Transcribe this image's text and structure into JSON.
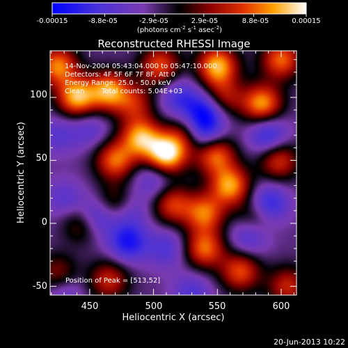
{
  "chart_data": {
    "type": "heatmap",
    "title": "Reconstructed RHESSI Image",
    "xlabel": "Heliocentric X (arcsec)",
    "ylabel": "Heliocentric Y (arcsec)",
    "xlim": [
      419,
      612
    ],
    "ylim": [
      -57,
      137
    ],
    "x_ticks": [
      450,
      500,
      550,
      600
    ],
    "y_ticks": [
      -50,
      0,
      50,
      100
    ],
    "colorbar": {
      "ticks": [
        "-0.00015",
        "-8.8e-05",
        "-2.9e-05",
        "2.9e-05",
        "8.8e-05",
        "0.00015"
      ],
      "tick_values": [
        -0.00015,
        -8.8e-05,
        -2.9e-05,
        2.9e-05,
        8.8e-05,
        0.00015
      ],
      "range": [
        -0.00015,
        0.00015
      ],
      "label": "(photons cm",
      "label_sup1": "-2",
      "label_mid": " s",
      "label_sup2": "-1",
      "label_end": " asec",
      "label_sup3": "-2",
      "label_close": ")"
    },
    "annotations": {
      "time_range": "14-Nov-2004 05:43:04.000 to 05:47:10.000",
      "detectors": "Detectors: 4F 5F 6F 7F 8F, Att 0",
      "energy": "Energy Range: 25.0 - 50.0 keV",
      "algorithm": "Clean",
      "counts": "Total counts: 5.04E+03",
      "peak": "Position of Peak = [513,52]"
    },
    "peak": {
      "x": 513,
      "y": 52
    },
    "sources": [
      {
        "x": 510,
        "y": 55,
        "flux": 0.00015
      },
      {
        "x": 490,
        "y": 68,
        "flux": 0.00011
      },
      {
        "x": 470,
        "y": 50,
        "flux": 9e-05
      },
      {
        "x": 440,
        "y": 100,
        "flux": 0.00012
      },
      {
        "x": 425,
        "y": 125,
        "flux": 0.0001
      },
      {
        "x": 465,
        "y": 105,
        "flux": 0.00011
      },
      {
        "x": 505,
        "y": 125,
        "flux": 8e-05
      },
      {
        "x": 550,
        "y": 125,
        "flux": 0.00012
      },
      {
        "x": 585,
        "y": 95,
        "flux": 0.00011
      },
      {
        "x": 600,
        "y": 130,
        "flux": 9e-05
      },
      {
        "x": 548,
        "y": 55,
        "flux": 0.0001
      },
      {
        "x": 560,
        "y": 30,
        "flux": 0.00011
      },
      {
        "x": 598,
        "y": 50,
        "flux": 7e-05
      },
      {
        "x": 515,
        "y": 15,
        "flux": 7e-05
      },
      {
        "x": 540,
        "y": 8,
        "flux": 9e-05
      },
      {
        "x": 445,
        "y": 0,
        "flux": 5e-05
      },
      {
        "x": 470,
        "y": 15,
        "flux": 5e-05
      },
      {
        "x": 465,
        "y": -45,
        "flux": 6e-05
      },
      {
        "x": 540,
        "y": -20,
        "flux": 9e-05
      },
      {
        "x": 568,
        "y": -38,
        "flux": 8e-05
      },
      {
        "x": 605,
        "y": -50,
        "flux": 6e-05
      },
      {
        "x": 425,
        "y": -40,
        "flux": 4e-05
      },
      {
        "x": 555,
        "y": 100,
        "flux": 5e-05
      },
      {
        "x": 580,
        "y": 5,
        "flux": 4e-05
      },
      {
        "x": 525,
        "y": 70,
        "flux": 4e-05
      },
      {
        "x": 485,
        "y": 95,
        "flux": 5e-05
      },
      {
        "x": 540,
        "y": 88,
        "flux": -0.0001
      },
      {
        "x": 540,
        "y": 70,
        "flux": -8e-05
      },
      {
        "x": 520,
        "y": 100,
        "flux": -6e-05
      },
      {
        "x": 590,
        "y": 70,
        "flux": -8e-05
      },
      {
        "x": 500,
        "y": 35,
        "flux": -5e-05
      },
      {
        "x": 450,
        "y": 75,
        "flux": -4e-05
      },
      {
        "x": 455,
        "y": 5,
        "flux": -9e-05
      },
      {
        "x": 480,
        "y": 10,
        "flux": -5e-05
      },
      {
        "x": 430,
        "y": 20,
        "flux": -4e-05
      },
      {
        "x": 480,
        "y": -15,
        "flux": -9e-05
      },
      {
        "x": 510,
        "y": -20,
        "flux": -5e-05
      },
      {
        "x": 590,
        "y": 15,
        "flux": -9e-05
      },
      {
        "x": 575,
        "y": -10,
        "flux": -6e-05
      },
      {
        "x": 430,
        "y": -55,
        "flux": -4e-05
      },
      {
        "x": 530,
        "y": -55,
        "flux": -5e-05
      },
      {
        "x": 425,
        "y": 70,
        "flux": -4e-05
      }
    ]
  },
  "footer": {
    "date": "20-Jun-2013 10:22"
  }
}
